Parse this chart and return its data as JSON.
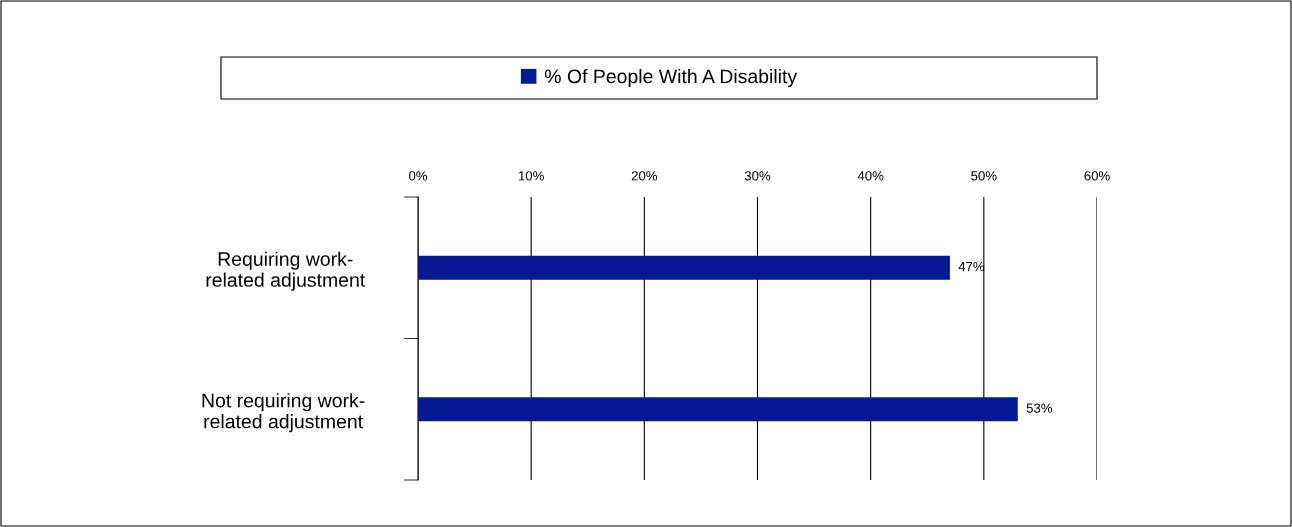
{
  "chart_data": {
    "type": "bar",
    "orientation": "horizontal",
    "categories": [
      "Requiring work-\nrelated adjustment",
      "Not requiring work-\nrelated adjustment"
    ],
    "series": [
      {
        "name": "% Of People With A Disability",
        "color": "#061993",
        "values": [
          47,
          53
        ],
        "value_labels": [
          "47%",
          "53%"
        ]
      }
    ],
    "xlim": [
      0,
      60
    ],
    "xticks": [
      {
        "value": 0,
        "label": "0%"
      },
      {
        "value": 10,
        "label": "10%"
      },
      {
        "value": 20,
        "label": "20%"
      },
      {
        "value": 30,
        "label": "30%"
      },
      {
        "value": 40,
        "label": "40%"
      },
      {
        "value": 50,
        "label": "50%"
      },
      {
        "value": 60,
        "label": "60%"
      }
    ],
    "grid": "x",
    "legend": "top"
  }
}
